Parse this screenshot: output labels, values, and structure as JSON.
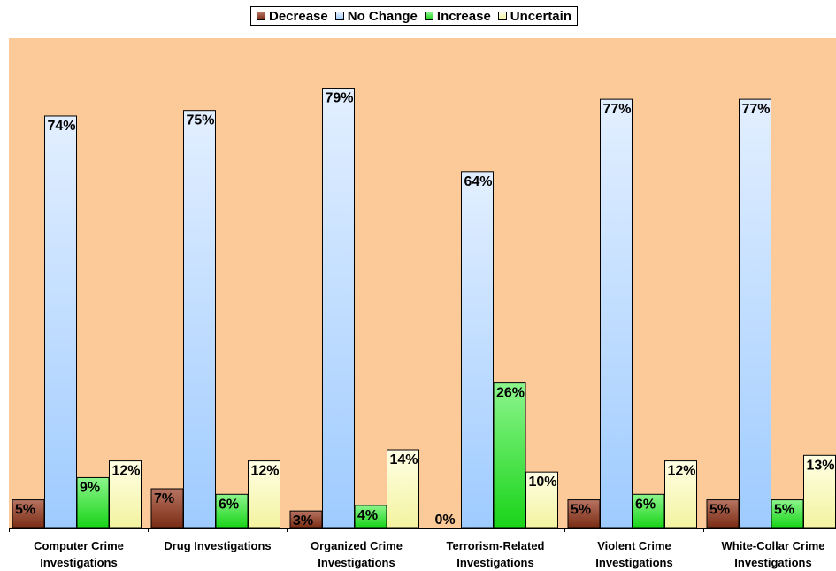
{
  "chart_data": {
    "type": "bar",
    "categories": [
      [
        "Computer Crime",
        "Investigations"
      ],
      [
        "Drug Investigations"
      ],
      [
        "Organized Crime",
        "Investigations"
      ],
      [
        "Terrorism-Related",
        "Investigations"
      ],
      [
        "Violent Crime",
        "Investigations"
      ],
      [
        "White-Collar Crime",
        "Investigations"
      ]
    ],
    "series": [
      {
        "name": "Decrease",
        "values": [
          5,
          7,
          3,
          0,
          5,
          5
        ],
        "labels": [
          "5%",
          "7%",
          "3%",
          "0%",
          "5%",
          "5%"
        ],
        "color_top": "#b77462",
        "color_bottom": "#7a2c14"
      },
      {
        "name": "No Change",
        "values": [
          74,
          75,
          79,
          64,
          77,
          77
        ],
        "labels": [
          "74%",
          "75%",
          "79%",
          "64%",
          "77%",
          "77%"
        ],
        "color_top": "#e3efff",
        "color_bottom": "#9ecbff"
      },
      {
        "name": "Increase",
        "values": [
          9,
          6,
          4,
          26,
          6,
          5
        ],
        "labels": [
          "9%",
          "6%",
          "4%",
          "26%",
          "6%",
          "5%"
        ],
        "color_top": "#8cf58c",
        "color_bottom": "#19d419"
      },
      {
        "name": "Uncertain",
        "values": [
          12,
          12,
          14,
          10,
          12,
          13
        ],
        "labels": [
          "12%",
          "12%",
          "14%",
          "10%",
          "12%",
          "13%"
        ],
        "color_top": "#ffffe6",
        "color_bottom": "#f3f3a0"
      }
    ],
    "ylim": [
      0,
      88
    ],
    "legend": "top-center",
    "grid": false,
    "background_color": "#fcc998"
  }
}
